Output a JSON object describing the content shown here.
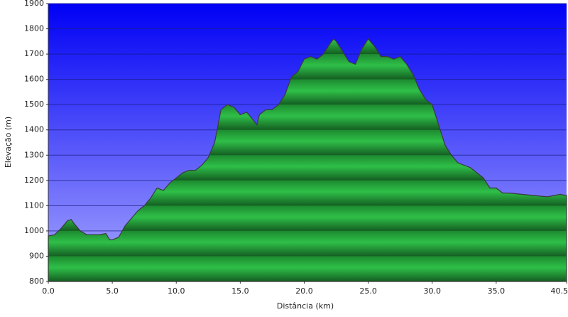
{
  "chart_data": {
    "type": "area",
    "x_label": "Distância  (km)",
    "y_label": "Elevação (m)",
    "x": [
      0,
      0.5,
      1.0,
      1.5,
      1.8,
      2.0,
      2.5,
      3.0,
      3.5,
      4.0,
      4.5,
      4.8,
      5.0,
      5.5,
      6.0,
      6.5,
      7.0,
      7.5,
      8.0,
      8.5,
      9.0,
      9.5,
      10.0,
      10.5,
      11.0,
      11.5,
      12.0,
      12.5,
      13.0,
      13.5,
      14.0,
      14.5,
      15.0,
      15.5,
      16.0,
      16.3,
      16.5,
      17.0,
      17.5,
      18.0,
      18.5,
      19.0,
      19.5,
      20.0,
      20.5,
      21.0,
      21.5,
      22.0,
      22.3,
      22.5,
      23.0,
      23.5,
      24.0,
      24.5,
      25.0,
      25.5,
      26.0,
      26.5,
      27.0,
      27.5,
      28.0,
      28.5,
      29.0,
      29.5,
      30.0,
      30.5,
      31.0,
      31.5,
      32.0,
      32.5,
      33.0,
      33.5,
      34.0,
      34.5,
      35.0,
      35.5,
      36.0,
      37.0,
      38.0,
      39.0,
      40.0,
      40.5
    ],
    "series": [
      {
        "color": "#22a83a",
        "values": [
          980,
          985,
          1010,
          1040,
          1045,
          1030,
          1000,
          985,
          985,
          985,
          990,
          965,
          965,
          975,
          1020,
          1050,
          1080,
          1100,
          1130,
          1170,
          1160,
          1190,
          1210,
          1230,
          1240,
          1240,
          1260,
          1290,
          1350,
          1480,
          1500,
          1490,
          1460,
          1470,
          1440,
          1420,
          1460,
          1480,
          1480,
          1500,
          1540,
          1610,
          1630,
          1680,
          1690,
          1680,
          1700,
          1740,
          1760,
          1750,
          1710,
          1670,
          1660,
          1720,
          1760,
          1730,
          1690,
          1690,
          1680,
          1690,
          1660,
          1620,
          1560,
          1520,
          1500,
          1420,
          1340,
          1300,
          1270,
          1260,
          1250,
          1230,
          1210,
          1170,
          1170,
          1150,
          1150,
          1145,
          1140,
          1135,
          1145,
          1140
        ]
      }
    ],
    "xlim": [
      0,
      40.5
    ],
    "ylim": [
      800,
      1900
    ],
    "xticks": [
      {
        "value": 0,
        "label": "0.0"
      },
      {
        "value": 5,
        "label": "5.0"
      },
      {
        "value": 10,
        "label": "10.0"
      },
      {
        "value": 15,
        "label": "15.0"
      },
      {
        "value": 20,
        "label": "20.0"
      },
      {
        "value": 25,
        "label": "25.0"
      },
      {
        "value": 30,
        "label": "30.0"
      },
      {
        "value": 35,
        "label": "35.0"
      },
      {
        "value": 40.5,
        "label": "40.5"
      }
    ],
    "yticks": [
      800,
      900,
      1000,
      1100,
      1200,
      1300,
      1400,
      1500,
      1600,
      1700,
      1800,
      1900
    ],
    "grid": true
  }
}
